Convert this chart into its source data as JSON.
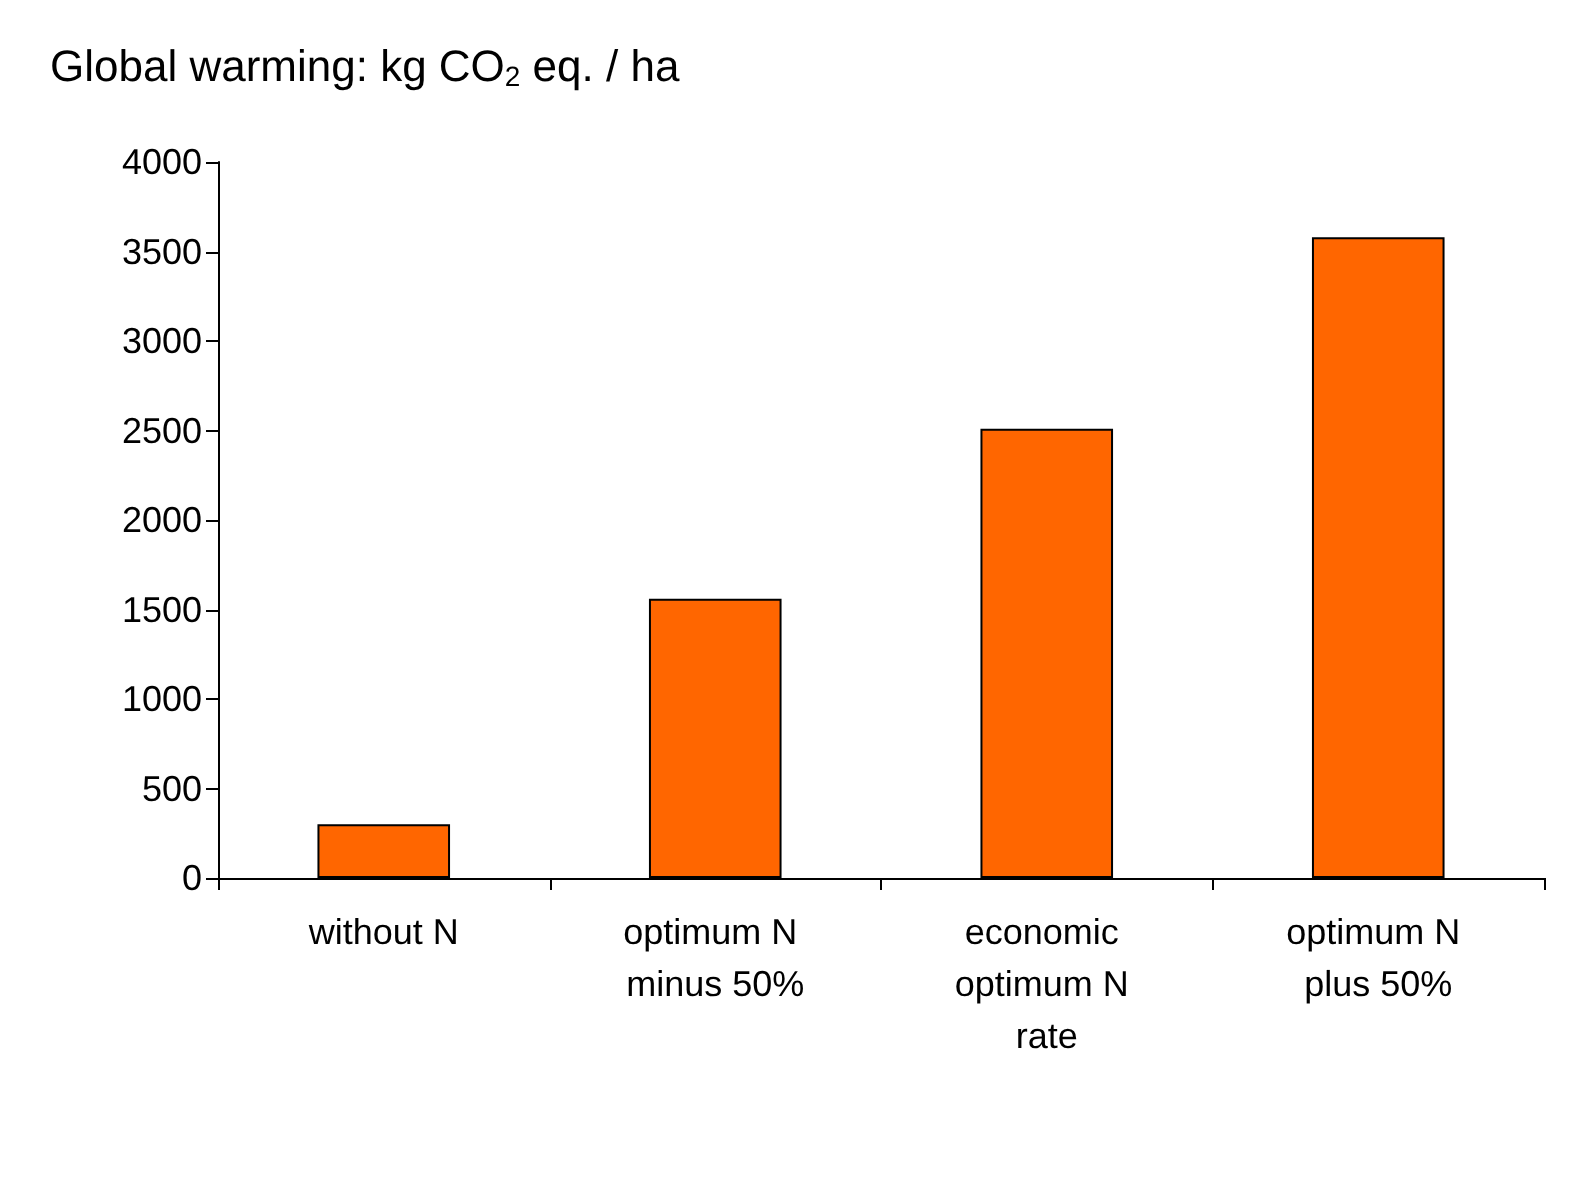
{
  "chart_data": {
    "type": "bar",
    "title": "Global warming: kg CO$_{2}$ eq. / ha",
    "categories": [
      "without N",
      "optimum N minus 50%",
      "economic optimum N rate",
      "optimum N plus 50%"
    ],
    "values": [
      300,
      1560,
      2510,
      3580
    ],
    "color": "#ff6600",
    "ylim": [
      0,
      4000
    ],
    "yticks": [
      0,
      500,
      1000,
      1500,
      2000,
      2500,
      3000,
      3500,
      4000
    ],
    "grid": false
  }
}
